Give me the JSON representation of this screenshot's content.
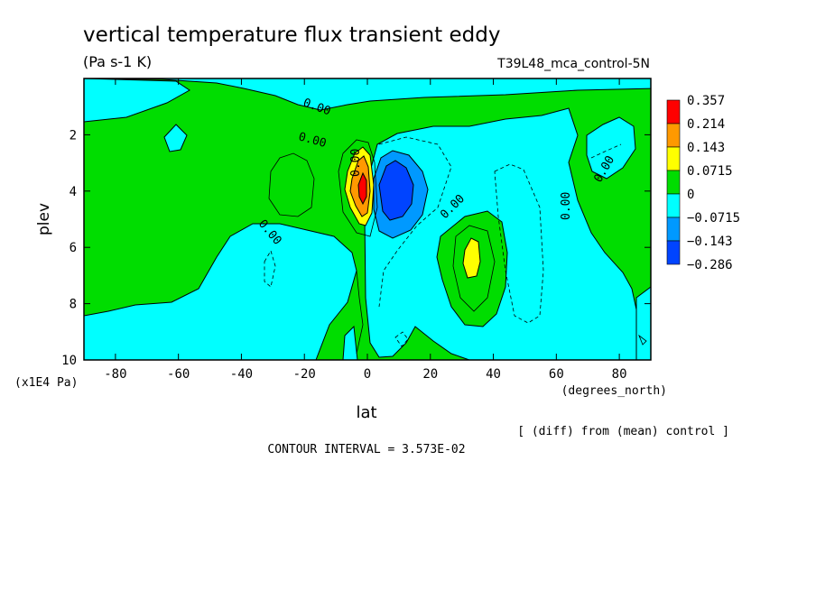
{
  "chart_data": {
    "type": "heatmap",
    "title": "vertical temperature flux transient eddy",
    "subtitle": "(Pa s-1 K)",
    "run_label": "T39L48_mca_control-5N",
    "xlabel": "lat",
    "x_unit": "(degrees_north)",
    "ylabel": "plev",
    "y_unit": "(x1E4 Pa)",
    "xlim": [
      -90,
      90
    ],
    "ylim": [
      10,
      0
    ],
    "x_ticks": [
      -80,
      -60,
      -40,
      -20,
      0,
      20,
      40,
      60,
      80
    ],
    "y_ticks": [
      2,
      4,
      6,
      8,
      10
    ],
    "footer_note": "[ (diff) from (mean) control ]",
    "contour_interval_text": "CONTOUR INTERVAL = 3.573E-02",
    "contour_labels": [
      "0.00",
      "0.00",
      "0.00",
      "0.00",
      "0.00",
      "0.00",
      "0.00"
    ],
    "legend": {
      "labels": [
        "0.357",
        "0.214",
        "0.143",
        "0.0715",
        "0",
        "−0.0715",
        "−0.143",
        "−0.286"
      ],
      "colors": [
        "#ff0000",
        "#ff9900",
        "#ffff00",
        "#00dd00",
        "#00ffff",
        "#0099ff",
        "#0044ff"
      ]
    },
    "colors": {
      "positive_low": "#00dd00",
      "negative_low": "#00ffff",
      "positive_mid": "#ffff00",
      "positive_high": "#ff9900",
      "positive_max": "#ff0000",
      "negative_mid": "#0099ff",
      "negative_high": "#0044ff"
    }
  }
}
